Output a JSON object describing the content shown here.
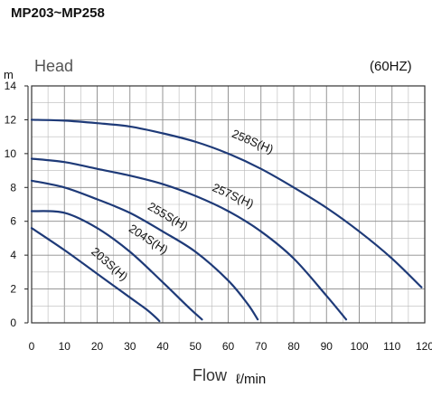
{
  "chart_data": {
    "type": "line",
    "title": "MP203~MP258",
    "frequency_label": "(60HZ)",
    "ylabel": "Head",
    "y_unit": "m",
    "xlabel": "Flow",
    "x_unit": "ℓ/min",
    "xlim": [
      0,
      120
    ],
    "ylim": [
      0,
      14
    ],
    "x_ticks": [
      0,
      10,
      20,
      30,
      40,
      50,
      60,
      70,
      80,
      90,
      100,
      110,
      120
    ],
    "y_ticks": [
      0,
      2,
      4,
      6,
      8,
      10,
      12,
      14
    ],
    "grid": true,
    "series_color": "#1e3a78",
    "series": [
      {
        "name": "203S(H)",
        "x": [
          0,
          10,
          20,
          30,
          35,
          38,
          39
        ],
        "y": [
          5.6,
          4.3,
          2.9,
          1.5,
          0.8,
          0.3,
          0.1
        ]
      },
      {
        "name": "204S(H)",
        "x": [
          0,
          10,
          20,
          30,
          40,
          48,
          52
        ],
        "y": [
          6.6,
          6.5,
          5.6,
          4.2,
          2.4,
          0.9,
          0.2
        ]
      },
      {
        "name": "255S(H)",
        "x": [
          0,
          10,
          20,
          30,
          40,
          50,
          60,
          66,
          69
        ],
        "y": [
          8.4,
          8.0,
          7.3,
          6.5,
          5.4,
          4.2,
          2.5,
          1.1,
          0.2
        ]
      },
      {
        "name": "257S(H)",
        "x": [
          0,
          10,
          20,
          30,
          40,
          50,
          60,
          70,
          80,
          90,
          96
        ],
        "y": [
          9.7,
          9.5,
          9.1,
          8.7,
          8.2,
          7.5,
          6.6,
          5.4,
          3.8,
          1.6,
          0.2
        ]
      },
      {
        "name": "258S(H)",
        "x": [
          0,
          10,
          20,
          30,
          40,
          50,
          60,
          70,
          80,
          90,
          100,
          110,
          119
        ],
        "y": [
          12.0,
          11.95,
          11.8,
          11.6,
          11.2,
          10.7,
          10.0,
          9.1,
          8.0,
          6.8,
          5.4,
          3.8,
          2.1
        ]
      }
    ]
  }
}
